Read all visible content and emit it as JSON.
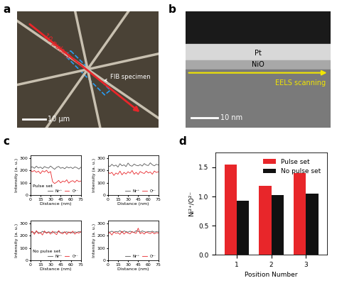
{
  "panels": [
    {
      "label": "a",
      "pulse_label": "10 pulses",
      "specimen_label": "FIB specimen",
      "scale_bar": "10 µm"
    },
    {
      "label": "b",
      "top_layer": "Pt",
      "bottom_layer": "NiO",
      "scan_label": "EELS scanning",
      "scale_bar": "10 nm"
    },
    {
      "label": "c"
    },
    {
      "label": "d"
    }
  ],
  "chart_data": [
    {
      "type": "line",
      "x": [
        0,
        3,
        6,
        9,
        12,
        15,
        18,
        21,
        24,
        27,
        30,
        33,
        36,
        39,
        42,
        45,
        48,
        51,
        54,
        57,
        60,
        63,
        66,
        69,
        72,
        75
      ],
      "xlim": [
        0,
        75
      ],
      "xticks": [
        0,
        15,
        30,
        45,
        60,
        75
      ],
      "ylim": [
        0,
        320
      ],
      "yticks": [
        0,
        100,
        200,
        300
      ],
      "x_label": "Distance (nm)",
      "y_label": "Intensity (a. u.)",
      "legend": "lower right",
      "annotations": [
        "Pulse set"
      ],
      "series": [
        {
          "name": "Ni²⁺",
          "color": "#555555",
          "values": [
            225,
            230,
            218,
            235,
            220,
            228,
            215,
            232,
            224,
            219,
            236,
            222,
            210,
            226,
            233,
            218,
            225,
            214,
            230,
            221,
            227,
            216,
            229,
            223,
            212,
            226
          ]
        },
        {
          "name": "O²⁻",
          "color": "#e8262a",
          "values": [
            205,
            190,
            200,
            185,
            195,
            175,
            198,
            188,
            202,
            180,
            192,
            110,
            95,
            105,
            120,
            100,
            115,
            108,
            125,
            98,
            112,
            118,
            104,
            122,
            110,
            115
          ]
        }
      ]
    },
    {
      "type": "line",
      "x": [
        0,
        3,
        6,
        9,
        12,
        15,
        18,
        21,
        24,
        27,
        30,
        33,
        36,
        39,
        42,
        45,
        48,
        51,
        54,
        57,
        60,
        63,
        66,
        69,
        72,
        75
      ],
      "xlim": [
        0,
        75
      ],
      "xticks": [
        0,
        15,
        30,
        45,
        60,
        75
      ],
      "ylim": [
        0,
        320
      ],
      "yticks": [
        0,
        100,
        200,
        300
      ],
      "x_label": "Distance (nm)",
      "y_label": "Intensity (a. u.)",
      "legend": "lower right",
      "series": [
        {
          "name": "Ni²⁺",
          "color": "#555555",
          "values": [
            240,
            232,
            250,
            236,
            244,
            228,
            255,
            238,
            246,
            232,
            260,
            240,
            235,
            252,
            242,
            238,
            248,
            236,
            256,
            244,
            240,
            262,
            246,
            238,
            250,
            245
          ]
        },
        {
          "name": "O²⁻",
          "color": "#e8262a",
          "values": [
            190,
            175,
            185,
            160,
            180,
            170,
            195,
            165,
            185,
            172,
            190,
            178,
            200,
            170,
            185,
            168,
            192,
            182,
            176,
            195,
            180,
            188,
            170,
            196,
            184,
            190
          ]
        }
      ]
    },
    {
      "type": "line",
      "x": [
        0,
        3,
        6,
        9,
        12,
        15,
        18,
        21,
        24,
        27,
        30,
        33,
        36,
        39,
        42,
        45,
        48,
        51,
        54,
        57,
        60,
        63,
        66,
        69,
        72,
        75
      ],
      "xlim": [
        0,
        75
      ],
      "xticks": [
        0,
        15,
        30,
        45,
        60,
        75
      ],
      "ylim": [
        0,
        320
      ],
      "yticks": [
        0,
        100,
        200,
        300
      ],
      "x_label": "Distance (nm)",
      "y_label": "Intensity (a. u.)",
      "legend": "lower right",
      "annotations": [
        "No pulse set"
      ],
      "series": [
        {
          "name": "Ni²⁺",
          "color": "#555555",
          "values": [
            225,
            230,
            222,
            232,
            226,
            220,
            235,
            228,
            224,
            231,
            226,
            222,
            230,
            227,
            233,
            221,
            228,
            225,
            231,
            224,
            229,
            222,
            230,
            226,
            233,
            227
          ]
        },
        {
          "name": "O²⁻",
          "color": "#e8262a",
          "values": [
            220,
            235,
            210,
            240,
            215,
            225,
            205,
            238,
            218,
            228,
            212,
            236,
            220,
            208,
            240,
            222,
            214,
            232,
            210,
            230,
            218,
            236,
            212,
            226,
            220,
            232
          ]
        }
      ]
    },
    {
      "type": "line",
      "x": [
        0,
        3,
        6,
        9,
        12,
        15,
        18,
        21,
        24,
        27,
        30,
        33,
        36,
        39,
        42,
        45,
        48,
        51,
        54,
        57,
        60,
        63,
        66,
        69,
        72,
        75
      ],
      "xlim": [
        0,
        75
      ],
      "xticks": [
        0,
        15,
        30,
        45,
        60,
        75
      ],
      "ylim": [
        0,
        320
      ],
      "yticks": [
        0,
        100,
        200,
        300
      ],
      "x_label": "Distance (nm)",
      "y_label": "Intensity (a. u.)",
      "legend": "lower right",
      "series": [
        {
          "name": "Ni²⁺",
          "color": "#555555",
          "values": [
            232,
            228,
            236,
            226,
            234,
            230,
            240,
            224,
            238,
            232,
            228,
            236,
            230,
            226,
            240,
            234,
            228,
            238,
            232,
            226,
            234,
            230,
            236,
            228,
            232,
            230
          ]
        },
        {
          "name": "O²⁻",
          "color": "#e8262a",
          "values": [
            215,
            225,
            205,
            230,
            218,
            222,
            210,
            235,
            212,
            228,
            220,
            214,
            232,
            224,
            218,
            260,
            215,
            226,
            212,
            230,
            222,
            216,
            228,
            214,
            224,
            220
          ]
        }
      ]
    },
    {
      "type": "bar",
      "categories": [
        "1",
        "2",
        "3"
      ],
      "x_label": "Position Number",
      "y_label": "Ni²⁺/O²⁻",
      "ylim": [
        0,
        1.75
      ],
      "yticks": [
        {
          "value": 0,
          "label": "0.0"
        },
        {
          "value": 0.5,
          "label": "0.5"
        },
        {
          "value": 1.0,
          "label": "1.0"
        },
        {
          "value": 1.5,
          "label": "1.5"
        }
      ],
      "legend": "upper right",
      "series": [
        {
          "name": "Pulse set",
          "color": "#e8262a",
          "values": [
            1.55,
            1.18,
            1.4
          ]
        },
        {
          "name": "No pulse set",
          "color": "#111111",
          "values": [
            0.93,
            1.02,
            1.05
          ]
        }
      ]
    }
  ]
}
